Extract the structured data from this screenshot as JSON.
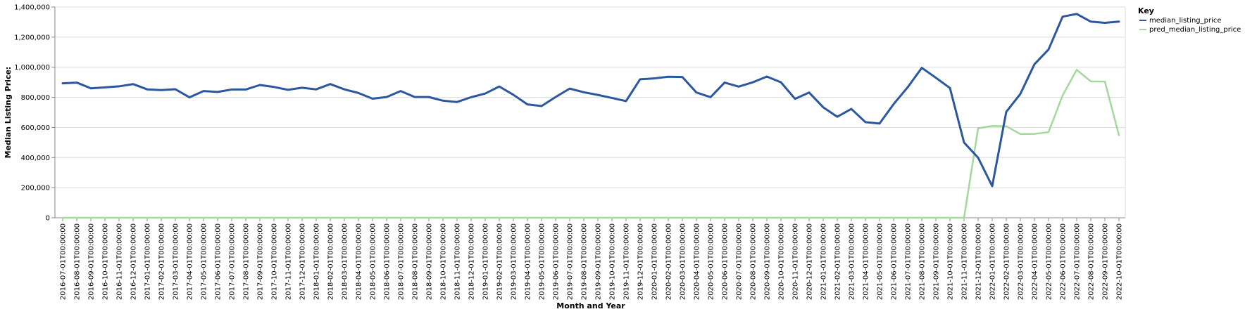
{
  "chart_data": {
    "type": "line",
    "xlabel": "Month and Year",
    "ylabel": "Median Listing Price:",
    "ylim": [
      0,
      1400000
    ],
    "y_ticks": [
      "0",
      "200,000",
      "400,000",
      "600,000",
      "800,000",
      "1,000,000",
      "1,200,000",
      "1,400,000"
    ],
    "y_tick_values": [
      0,
      200000,
      400000,
      600000,
      800000,
      1000000,
      1200000,
      1400000
    ],
    "grid": "horizontal",
    "legend": {
      "title": "Key",
      "placement": "right"
    },
    "x": [
      "2016-07-01T00:00:00",
      "2016-08-01T00:00:00",
      "2016-09-01T00:00:00",
      "2016-10-01T00:00:00",
      "2016-11-01T00:00:00",
      "2016-12-01T00:00:00",
      "2017-01-01T00:00:00",
      "2017-02-01T00:00:00",
      "2017-03-01T00:00:00",
      "2017-04-01T00:00:00",
      "2017-05-01T00:00:00",
      "2017-06-01T00:00:00",
      "2017-07-01T00:00:00",
      "2017-08-01T00:00:00",
      "2017-09-01T00:00:00",
      "2017-10-01T00:00:00",
      "2017-11-01T00:00:00",
      "2017-12-01T00:00:00",
      "2018-01-01T00:00:00",
      "2018-02-01T00:00:00",
      "2018-03-01T00:00:00",
      "2018-04-01T00:00:00",
      "2018-05-01T00:00:00",
      "2018-06-01T00:00:00",
      "2018-07-01T00:00:00",
      "2018-08-01T00:00:00",
      "2018-09-01T00:00:00",
      "2018-10-01T00:00:00",
      "2018-11-01T00:00:00",
      "2018-12-01T00:00:00",
      "2019-01-01T00:00:00",
      "2019-02-01T00:00:00",
      "2019-03-01T00:00:00",
      "2019-04-01T00:00:00",
      "2019-05-01T00:00:00",
      "2019-06-01T00:00:00",
      "2019-07-01T00:00:00",
      "2019-08-01T00:00:00",
      "2019-09-01T00:00:00",
      "2019-10-01T00:00:00",
      "2019-11-01T00:00:00",
      "2019-12-01T00:00:00",
      "2020-01-01T00:00:00",
      "2020-02-01T00:00:00",
      "2020-03-01T00:00:00",
      "2020-04-01T00:00:00",
      "2020-05-01T00:00:00",
      "2020-06-01T00:00:00",
      "2020-07-01T00:00:00",
      "2020-08-01T00:00:00",
      "2020-09-01T00:00:00",
      "2020-10-01T00:00:00",
      "2020-11-01T00:00:00",
      "2020-12-01T00:00:00",
      "2021-01-01T00:00:00",
      "2021-02-01T00:00:00",
      "2021-03-01T00:00:00",
      "2021-04-01T00:00:00",
      "2021-05-01T00:00:00",
      "2021-06-01T00:00:00",
      "2021-07-01T00:00:00",
      "2021-08-01T00:00:00",
      "2021-09-01T00:00:00",
      "2021-10-01T00:00:00",
      "2021-11-01T00:00:00",
      "2021-12-01T00:00:00",
      "2022-01-01T00:00:00",
      "2022-02-01T00:00:00",
      "2022-03-01T00:00:00",
      "2022-04-01T00:00:00",
      "2022-05-01T00:00:00",
      "2022-06-01T00:00:00",
      "2022-07-01T00:00:00",
      "2022-08-01T00:00:00",
      "2022-09-01T00:00:00",
      "2022-10-01T00:00:00"
    ],
    "series": [
      {
        "name": "median_listing_price",
        "color": "#2b56a0",
        "values": [
          893000,
          898000,
          860000,
          866000,
          873000,
          888000,
          853000,
          848000,
          854000,
          800000,
          842000,
          836000,
          852000,
          852000,
          882000,
          869000,
          850000,
          864000,
          853000,
          888000,
          853000,
          829000,
          791000,
          802000,
          842000,
          802000,
          802000,
          778000,
          769000,
          801000,
          825000,
          872000,
          817000,
          753000,
          742000,
          802000,
          858000,
          834000,
          816000,
          796000,
          775000,
          920000,
          926000,
          937000,
          935000,
          832000,
          801000,
          898000,
          871000,
          900000,
          938000,
          900000,
          790000,
          832000,
          734000,
          671000,
          723000,
          635000,
          626000,
          755000,
          867000,
          996000,
          930000,
          862000,
          500000,
          399000,
          210000,
          704000,
          823000,
          1020000,
          1118000,
          1336000,
          1354000,
          1303000,
          1295000,
          1303000
        ]
      },
      {
        "name": "pred_median_listing_price",
        "color": "#a3d99a",
        "values": [
          0,
          0,
          0,
          0,
          0,
          0,
          0,
          0,
          0,
          0,
          0,
          0,
          0,
          0,
          0,
          0,
          0,
          0,
          0,
          0,
          0,
          0,
          0,
          0,
          0,
          0,
          0,
          0,
          0,
          0,
          0,
          0,
          0,
          0,
          0,
          0,
          0,
          0,
          0,
          0,
          0,
          0,
          0,
          0,
          0,
          0,
          0,
          0,
          0,
          0,
          0,
          0,
          0,
          0,
          0,
          0,
          0,
          0,
          0,
          0,
          0,
          0,
          0,
          0,
          0,
          594000,
          610000,
          608000,
          556000,
          557000,
          569000,
          813000,
          983000,
          906000,
          905000,
          548000
        ]
      }
    ]
  }
}
